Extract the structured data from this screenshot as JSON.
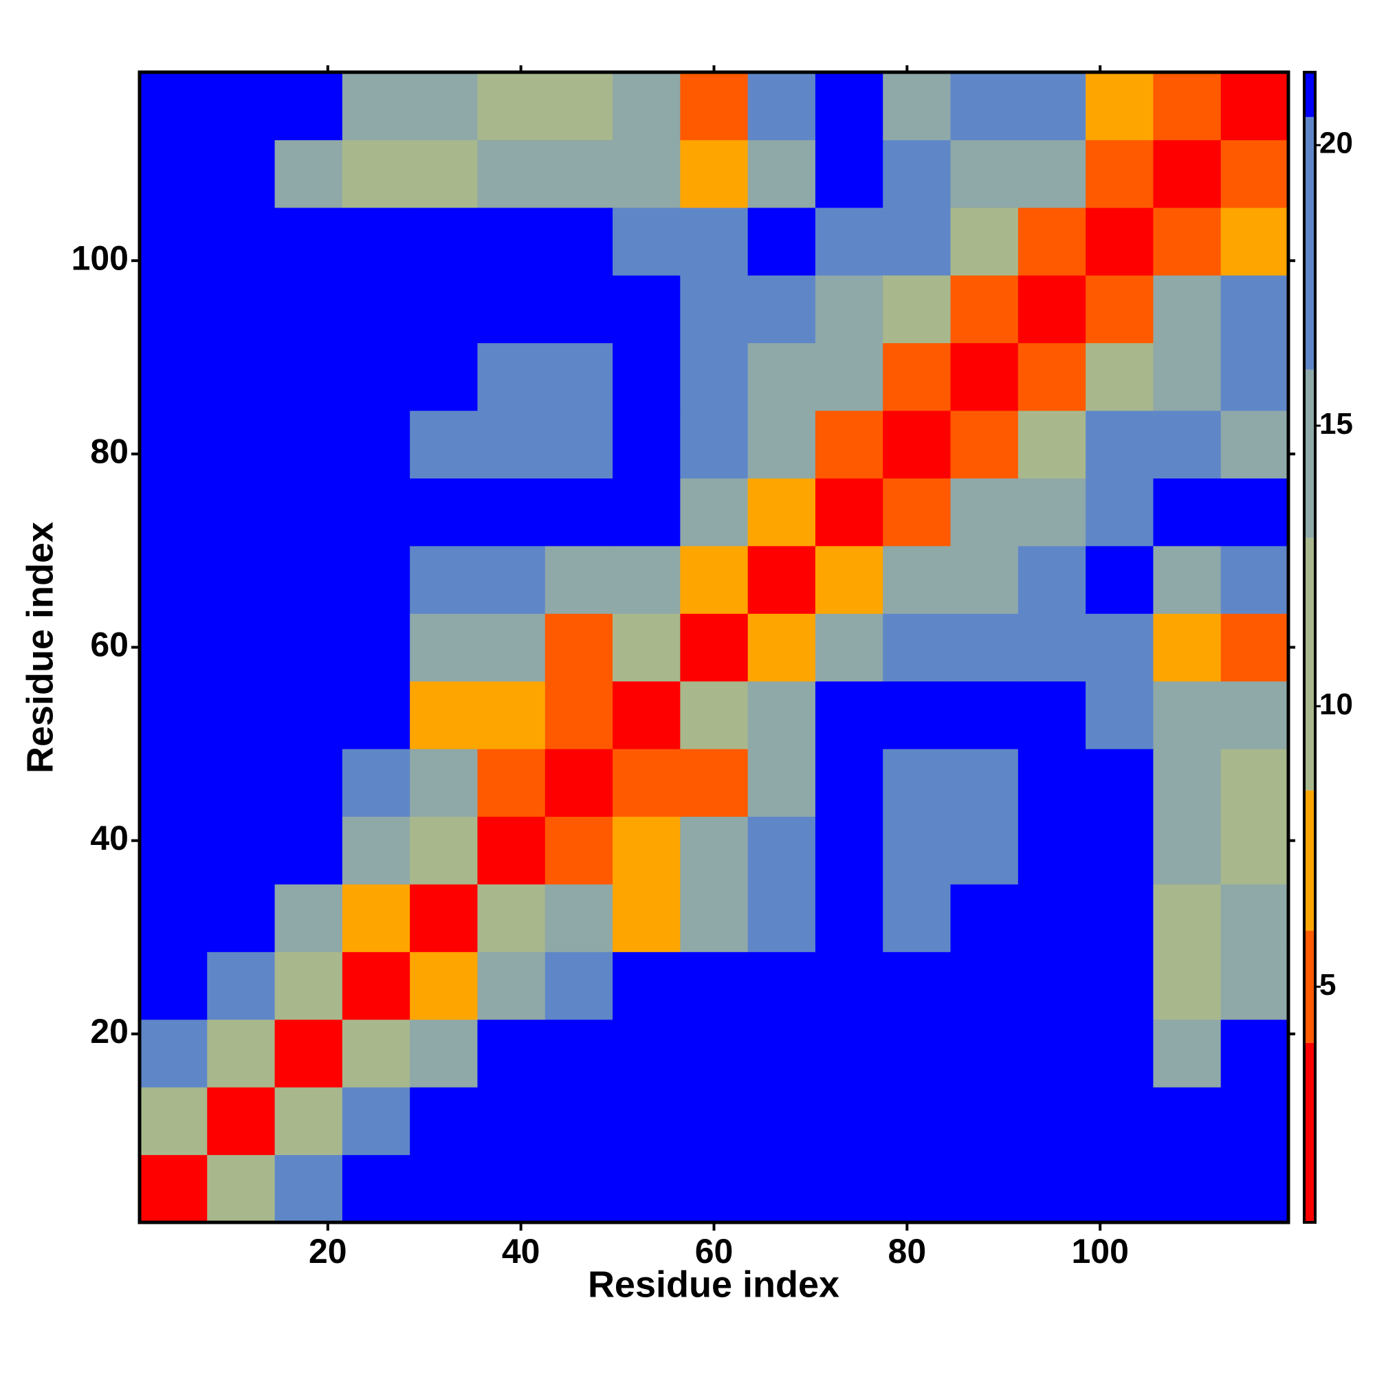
{
  "chart_data": {
    "type": "heatmap",
    "xlabel": "Residue index",
    "ylabel": "Residue index",
    "xbins": [
      0.5,
      7.5,
      14.5,
      21.5,
      28.5,
      35.5,
      42.5,
      49.5,
      56.5,
      63.5,
      70.5,
      77.5,
      84.5,
      91.5,
      98.5,
      105.5,
      112.5,
      119.5
    ],
    "ybins": [
      0.5,
      7.5,
      14.5,
      21.5,
      28.5,
      35.5,
      42.5,
      49.5,
      56.5,
      63.5,
      70.5,
      77.5,
      84.5,
      91.5,
      98.5,
      105.5,
      112.5,
      119.5
    ],
    "values": [
      [
        2,
        12,
        17,
        21,
        21,
        21,
        21,
        21,
        21,
        21,
        21,
        21,
        21,
        21,
        21,
        21,
        21
      ],
      [
        12,
        2,
        12,
        17,
        21,
        21,
        21,
        21,
        21,
        21,
        21,
        21,
        21,
        21,
        21,
        21,
        21
      ],
      [
        17,
        12,
        2,
        10,
        14,
        21,
        21,
        21,
        21,
        21,
        21,
        21,
        21,
        21,
        21,
        14,
        21
      ],
      [
        21,
        17,
        10,
        2,
        8,
        14,
        17,
        21,
        21,
        21,
        21,
        21,
        21,
        21,
        21,
        12,
        16
      ],
      [
        21,
        21,
        14,
        8,
        2,
        10,
        14,
        8,
        14,
        17,
        21,
        17,
        21,
        21,
        21,
        12,
        14
      ],
      [
        21,
        21,
        21,
        14,
        10,
        2,
        6,
        8,
        14,
        17,
        21,
        17,
        17,
        21,
        21,
        14,
        12
      ],
      [
        21,
        21,
        21,
        17,
        14,
        6,
        2,
        6,
        6,
        14,
        21,
        17,
        17,
        21,
        21,
        14,
        12
      ],
      [
        21,
        21,
        21,
        21,
        8,
        8,
        6,
        2,
        10,
        14,
        21,
        21,
        21,
        21,
        17,
        14,
        14
      ],
      [
        21,
        21,
        21,
        21,
        14,
        14,
        6,
        10,
        2,
        8,
        14,
        17,
        17,
        17,
        17,
        8,
        6
      ],
      [
        21,
        21,
        21,
        21,
        17,
        17,
        14,
        14,
        8,
        2,
        8,
        14,
        14,
        17,
        21,
        14,
        17
      ],
      [
        21,
        21,
        21,
        21,
        21,
        21,
        21,
        21,
        14,
        8,
        2,
        6,
        14,
        14,
        17,
        21,
        21
      ],
      [
        21,
        21,
        21,
        21,
        17,
        17,
        17,
        21,
        17,
        14,
        6,
        2,
        6,
        12,
        17,
        17,
        14
      ],
      [
        21,
        21,
        21,
        21,
        21,
        17,
        17,
        21,
        17,
        14,
        14,
        6,
        2,
        6,
        12,
        14,
        17
      ],
      [
        21,
        21,
        21,
        21,
        21,
        21,
        21,
        21,
        17,
        17,
        14,
        12,
        6,
        2,
        6,
        14,
        17
      ],
      [
        21,
        21,
        21,
        21,
        21,
        21,
        21,
        17,
        17,
        21,
        17,
        17,
        12,
        6,
        2,
        6,
        8
      ],
      [
        21,
        21,
        14,
        12,
        12,
        14,
        14,
        14,
        8,
        14,
        21,
        17,
        14,
        14,
        6,
        2,
        6
      ],
      [
        21,
        21,
        21,
        16,
        14,
        12,
        12,
        14,
        6,
        17,
        21,
        14,
        17,
        17,
        8,
        6,
        2
      ]
    ],
    "xlim": [
      0.5,
      119.5
    ],
    "ylim": [
      0.5,
      119.5
    ],
    "xticks": [
      20,
      40,
      60,
      80,
      100
    ],
    "yticks": [
      20,
      40,
      60,
      80,
      100
    ],
    "clim": [
      0.8,
      21.3
    ],
    "cticks": [
      5,
      10,
      15,
      20
    ],
    "colorscale": [
      [
        4,
        "#ff0000"
      ],
      [
        6,
        "#ff5a00"
      ],
      [
        8.5,
        "#ffa500"
      ],
      [
        13,
        "#a8b88c"
      ],
      [
        16,
        "#8fa8a8"
      ],
      [
        20.5,
        "#5f87c8"
      ],
      [
        21.3,
        "#0000ff"
      ]
    ]
  }
}
